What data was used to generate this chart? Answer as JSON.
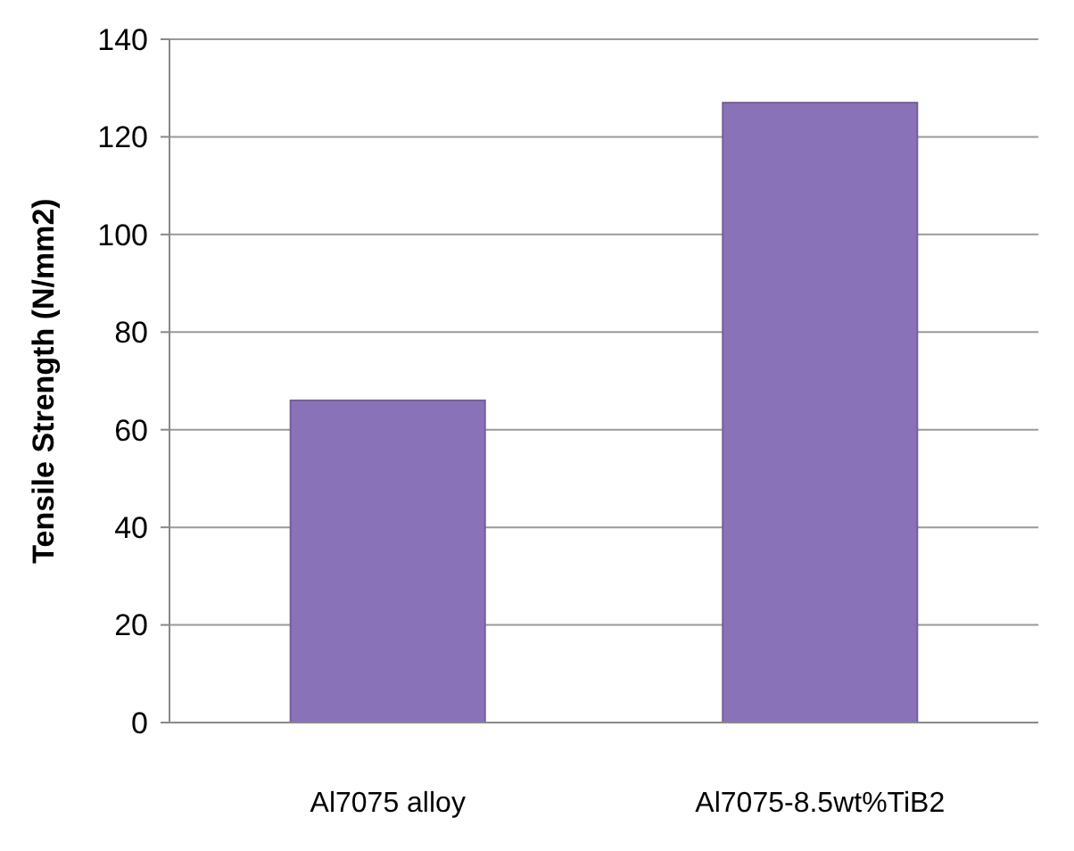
{
  "chart_data": {
    "type": "bar",
    "ylabel": "Tensile Strength (N/mm2)",
    "categories": [
      "Al7075 alloy",
      "Al7075-8.5wt%TiB2"
    ],
    "values": [
      66,
      127
    ],
    "color": "#8a72b8",
    "ylim": [
      0,
      140
    ],
    "yticks": [
      0,
      20,
      40,
      60,
      80,
      100,
      120,
      140
    ],
    "grid": "y"
  }
}
